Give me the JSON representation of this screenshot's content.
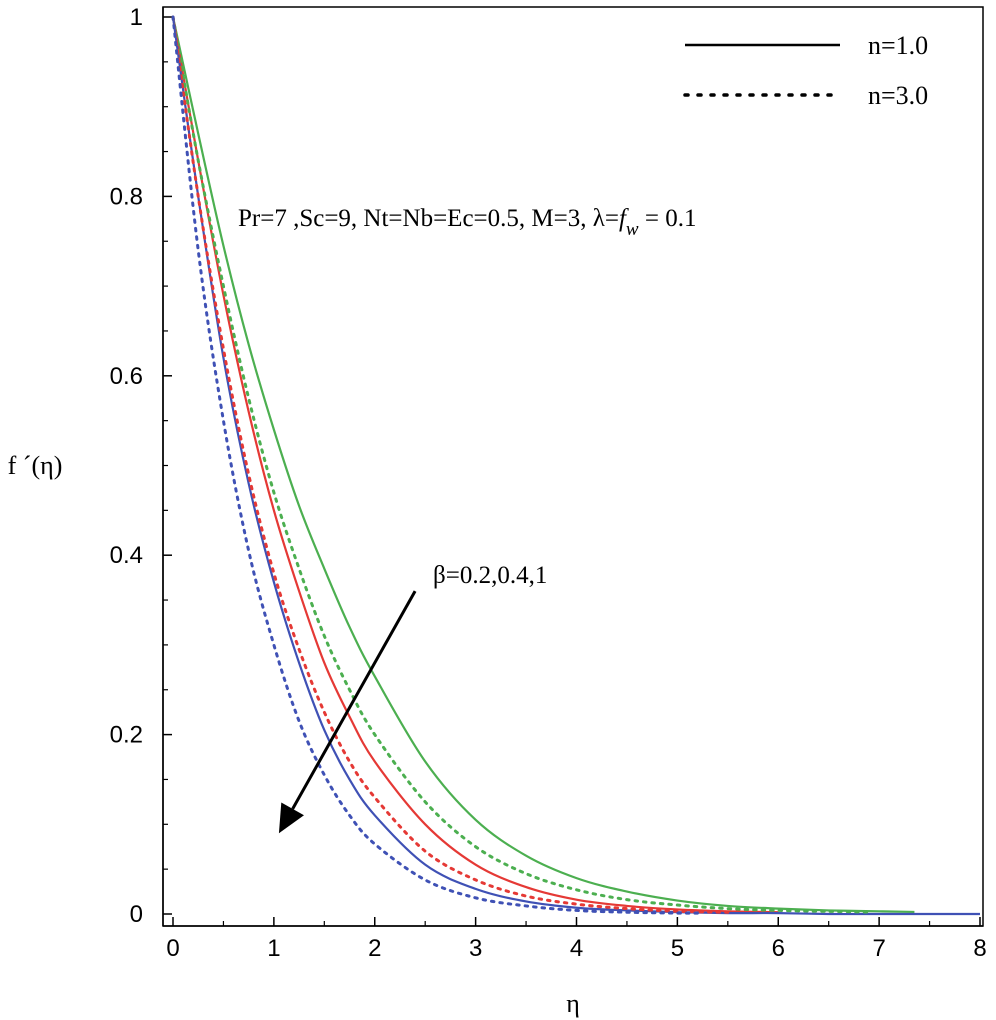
{
  "chart_data": {
    "type": "line",
    "xlabel": "η",
    "ylabel": "f ´(η)",
    "xlim": [
      0,
      8
    ],
    "ylim": [
      0,
      1
    ],
    "xticks": [
      0,
      1,
      2,
      3,
      4,
      5,
      6,
      7,
      8
    ],
    "yticks": [
      0,
      0.2,
      0.4,
      0.6,
      0.8,
      1
    ],
    "ytick_labels": [
      "0",
      "0.2",
      "0.4",
      "0.6",
      "0.8",
      "1"
    ],
    "grid": false,
    "legend": {
      "placement": "top-right",
      "entries": [
        {
          "label": "n=1.0",
          "style": "solid"
        },
        {
          "label": "n=3.0",
          "style": "dotted"
        }
      ]
    },
    "annotations": {
      "params_text": "Pr=7 ,Sc=9, Nt=Nb=Ec=0.5, M=3, λ=",
      "params_fw": "f",
      "params_fw_sub": "w",
      "params_tail": " = 0.1",
      "arrow_text": "β=0.2,0.4,1",
      "arrow_from": [
        2.4,
        0.36
      ],
      "arrow_to": [
        1.05,
        0.09
      ]
    },
    "x": [
      0,
      0.25,
      0.5,
      0.75,
      1,
      1.25,
      1.5,
      1.75,
      2,
      2.5,
      3,
      3.5,
      4,
      4.5,
      5,
      5.5,
      6,
      6.5,
      7,
      7.5,
      8
    ],
    "series": [
      {
        "name": "β=0.2, n=1.0",
        "color": "#4caf50",
        "style": "solid",
        "xmax": 7.35,
        "values": [
          1,
          0.87,
          0.745,
          0.635,
          0.54,
          0.455,
          0.385,
          0.32,
          0.265,
          0.17,
          0.105,
          0.065,
          0.04,
          0.025,
          0.015,
          0.009,
          0.006,
          0.004,
          0.003,
          0.002,
          0.002
        ]
      },
      {
        "name": "β=0.4, n=1.0",
        "color": "#e53935",
        "style": "solid",
        "xmax": 6.0,
        "values": [
          1,
          0.84,
          0.69,
          0.56,
          0.45,
          0.36,
          0.28,
          0.22,
          0.17,
          0.1,
          0.055,
          0.03,
          0.016,
          0.009,
          0.005,
          0.003,
          0.002,
          0.001,
          0.001,
          0.001,
          0.001
        ]
      },
      {
        "name": "β=1, n=1.0",
        "color": "#3f51b5",
        "style": "solid",
        "xmax": 8.0,
        "values": [
          1,
          0.8,
          0.62,
          0.48,
          0.37,
          0.28,
          0.205,
          0.15,
          0.11,
          0.055,
          0.028,
          0.014,
          0.007,
          0.004,
          0.002,
          0.001,
          0.001,
          0.0,
          0.0,
          0.0,
          0.0
        ]
      },
      {
        "name": "β=0.2, n=3.0",
        "color": "#4caf50",
        "style": "dotted",
        "xmax": 6.9,
        "values": [
          1,
          0.84,
          0.7,
          0.575,
          0.47,
          0.385,
          0.31,
          0.25,
          0.2,
          0.125,
          0.075,
          0.045,
          0.027,
          0.016,
          0.01,
          0.006,
          0.004,
          0.003,
          0.002,
          0.002,
          0.002
        ]
      },
      {
        "name": "β=0.4, n=3.0",
        "color": "#e53935",
        "style": "dotted",
        "xmax": 5.5,
        "values": [
          1,
          0.8,
          0.63,
          0.49,
          0.38,
          0.295,
          0.225,
          0.17,
          0.13,
          0.07,
          0.038,
          0.02,
          0.011,
          0.006,
          0.003,
          0.002,
          0.001,
          0.001,
          0.001,
          0.001,
          0.001
        ]
      },
      {
        "name": "β=1, n=3.0",
        "color": "#3f51b5",
        "style": "dotted",
        "xmax": 5.2,
        "values": [
          1,
          0.74,
          0.55,
          0.405,
          0.3,
          0.215,
          0.155,
          0.11,
          0.078,
          0.038,
          0.018,
          0.009,
          0.004,
          0.002,
          0.001,
          0.001,
          0.0,
          0.0,
          0.0,
          0.0,
          0.0
        ]
      }
    ]
  }
}
